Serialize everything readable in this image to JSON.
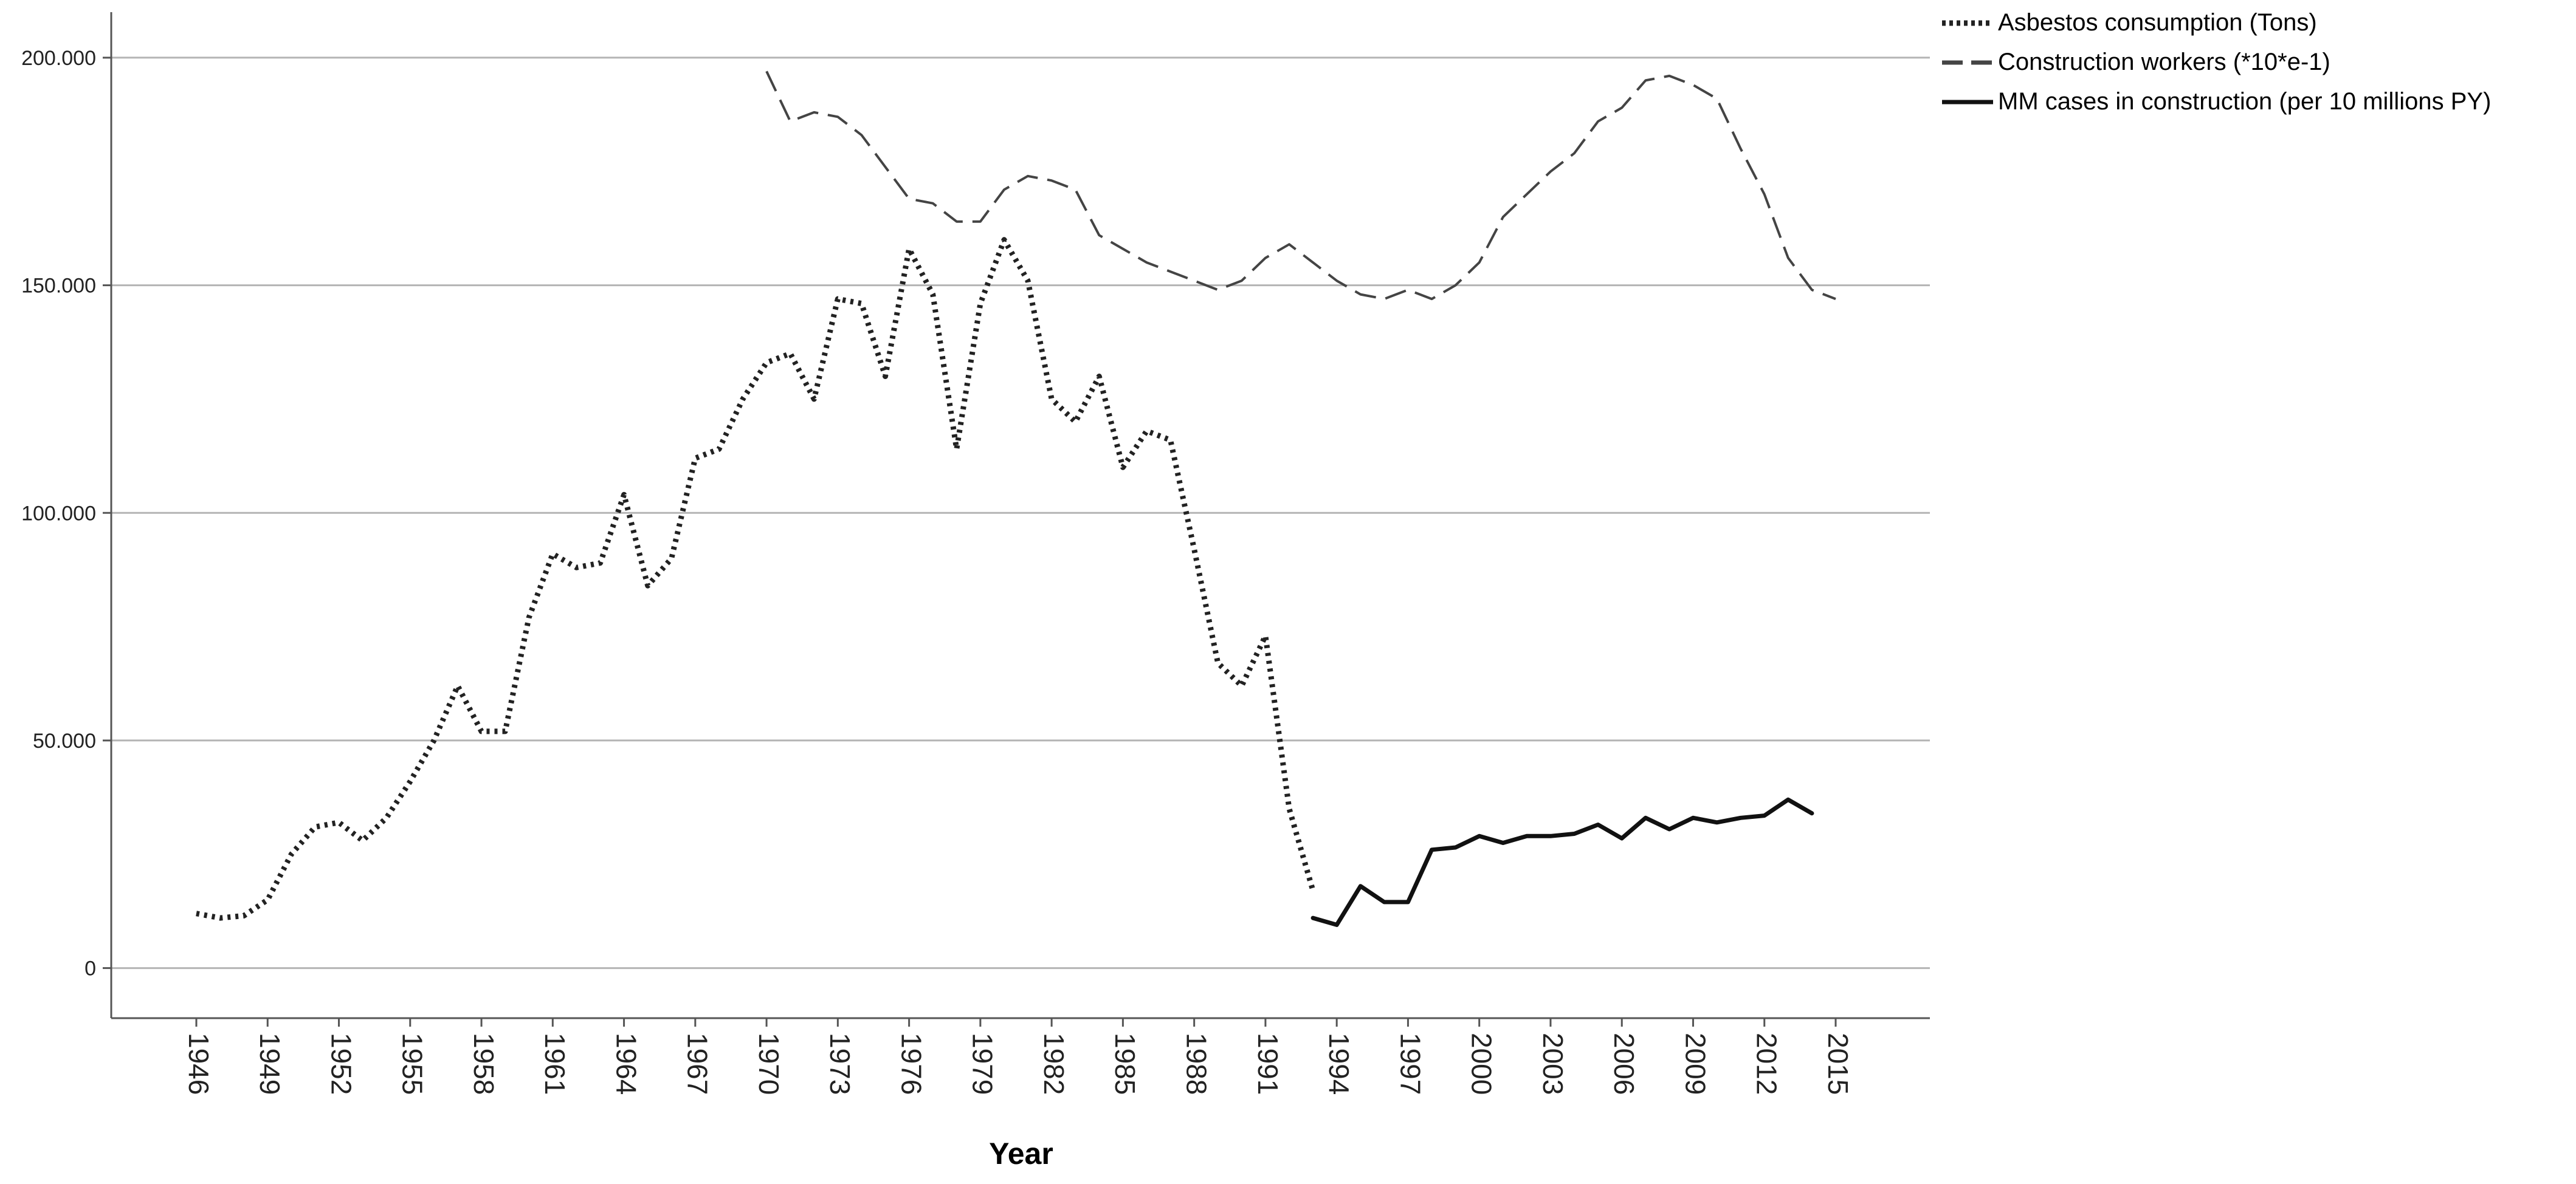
{
  "chart_data": {
    "type": "line",
    "title": "",
    "xlabel": "Year",
    "ylabel": "",
    "ylim": [
      -11000,
      210000
    ],
    "xlim": [
      1944.5,
      2019
    ],
    "grid": "horizontal",
    "legend_position": "top-right",
    "y_ticks": [
      0,
      50000,
      100000,
      150000,
      200000
    ],
    "y_tick_labels": [
      "0",
      "50.000",
      "100.000",
      "150.000",
      "200.000"
    ],
    "x_ticks": [
      1946,
      1949,
      1952,
      1955,
      1958,
      1961,
      1964,
      1967,
      1970,
      1973,
      1976,
      1979,
      1982,
      1985,
      1988,
      1991,
      1994,
      1997,
      2000,
      2003,
      2006,
      2009,
      2012,
      2015
    ],
    "x_tick_labels": [
      "1946",
      "1949",
      "1952",
      "1955",
      "1958",
      "1961",
      "1964",
      "1967",
      "1970",
      "1973",
      "1976",
      "1979",
      "1982",
      "1985",
      "1988",
      "1991",
      "1994",
      "1997",
      "2000",
      "2003",
      "2006",
      "2009",
      "2012",
      "2015"
    ],
    "series": [
      {
        "name": "Asbestos consumption (Tons)",
        "style": "dotted",
        "color": "#222222",
        "x": [
          1946,
          1947,
          1948,
          1949,
          1950,
          1951,
          1952,
          1953,
          1954,
          1955,
          1956,
          1957,
          1958,
          1959,
          1960,
          1961,
          1962,
          1963,
          1964,
          1965,
          1966,
          1967,
          1968,
          1969,
          1970,
          1971,
          1972,
          1973,
          1974,
          1975,
          1976,
          1977,
          1978,
          1979,
          1980,
          1981,
          1982,
          1983,
          1984,
          1985,
          1986,
          1987,
          1988,
          1989,
          1990,
          1991,
          1992,
          1993
        ],
        "y": [
          12000,
          11000,
          11500,
          15000,
          25000,
          31000,
          32000,
          28000,
          33000,
          41000,
          50000,
          62000,
          52000,
          52000,
          77000,
          91000,
          88000,
          89000,
          104000,
          84000,
          90000,
          112000,
          114000,
          125000,
          133000,
          135000,
          125000,
          147000,
          146000,
          130000,
          158000,
          148000,
          114000,
          146000,
          160000,
          151000,
          125000,
          120000,
          130000,
          110000,
          118000,
          116000,
          92000,
          67000,
          62000,
          73000,
          35000,
          17000
        ]
      },
      {
        "name": "Construction workers (*10*e-1)",
        "style": "dashed",
        "color": "#444444",
        "x": [
          1970,
          1971,
          1972,
          1973,
          1974,
          1975,
          1976,
          1977,
          1978,
          1979,
          1980,
          1981,
          1982,
          1983,
          1984,
          1985,
          1986,
          1987,
          1988,
          1989,
          1990,
          1991,
          1992,
          1993,
          1994,
          1995,
          1996,
          1997,
          1998,
          1999,
          2000,
          2001,
          2002,
          2003,
          2004,
          2005,
          2006,
          2007,
          2008,
          2009,
          2010,
          2011,
          2012,
          2013,
          2014,
          2015
        ],
        "y": [
          197000,
          186000,
          188000,
          187000,
          183000,
          176000,
          169000,
          168000,
          164000,
          164000,
          171000,
          174000,
          173000,
          171000,
          161000,
          158000,
          155000,
          153000,
          151000,
          149000,
          151000,
          156000,
          159000,
          155000,
          151000,
          148000,
          147000,
          149000,
          147000,
          150000,
          155000,
          165000,
          170000,
          175000,
          179000,
          186000,
          189000,
          195000,
          196000,
          194000,
          191000,
          180000,
          170000,
          156000,
          149000,
          147000
        ]
      },
      {
        "name": "MM cases in construction (per 10 millions PY)",
        "style": "solid",
        "color": "#111111",
        "x": [
          1993,
          1994,
          1995,
          1996,
          1997,
          1998,
          1999,
          2000,
          2001,
          2002,
          2003,
          2004,
          2005,
          2006,
          2007,
          2008,
          2009,
          2010,
          2011,
          2012,
          2013,
          2014
        ],
        "y": [
          11000,
          9500,
          18000,
          14500,
          14500,
          26000,
          26500,
          29000,
          27500,
          29000,
          29000,
          29500,
          31500,
          28500,
          33000,
          30500,
          33000,
          32000,
          33000,
          33500,
          37000,
          34000
        ]
      }
    ]
  }
}
